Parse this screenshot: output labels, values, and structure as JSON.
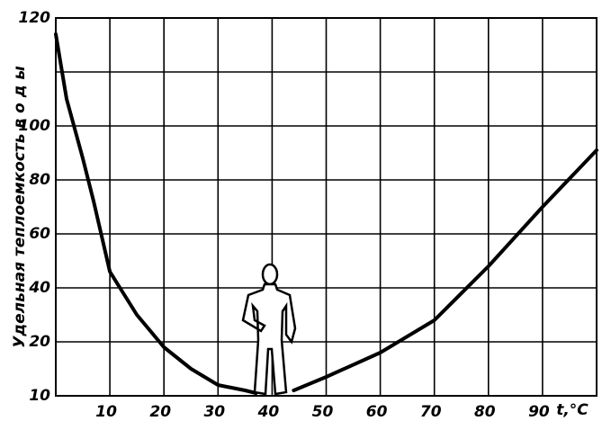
{
  "chart_data": {
    "type": "line",
    "ylabel": "Удельная теплоемкость в о д ы",
    "xlabel": "t,°C",
    "x": [
      0,
      2,
      5,
      7,
      10,
      15,
      20,
      25,
      30,
      35,
      37,
      40,
      44,
      50,
      60,
      70,
      80,
      90,
      100
    ],
    "values": [
      117,
      105,
      88,
      72,
      46,
      30,
      19,
      15,
      12,
      11,
      10.5,
      null,
      11,
      13.5,
      18,
      28,
      48,
      70,
      91
    ],
    "color": "#000000",
    "xlim": [
      0,
      100
    ],
    "xticks": [
      10,
      20,
      30,
      40,
      50,
      60,
      70,
      80,
      90
    ],
    "yticks": [
      10,
      20,
      40,
      60,
      80,
      100,
      120
    ],
    "grid": true
  }
}
